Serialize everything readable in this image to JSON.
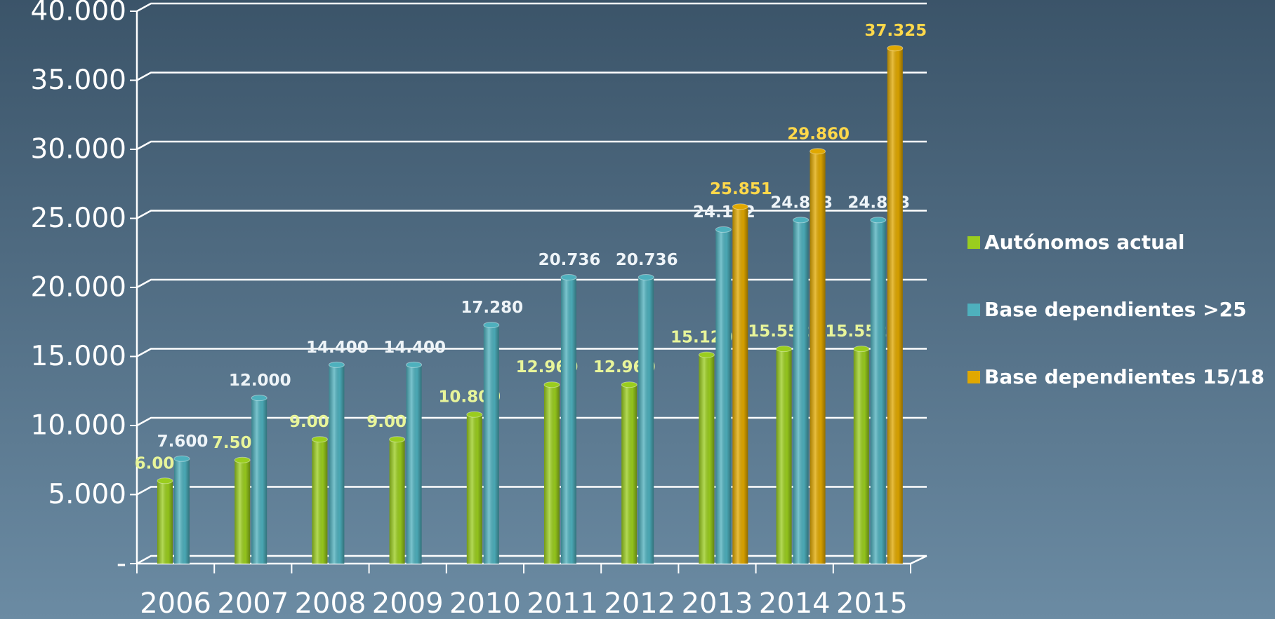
{
  "chart_data": {
    "type": "bar",
    "categories": [
      "2006",
      "2007",
      "2008",
      "2009",
      "2010",
      "2011",
      "2012",
      "2013",
      "2014",
      "2015"
    ],
    "series": [
      {
        "name": "Autónomos actual",
        "color": "#9acd1e",
        "values": [
          6000,
          7500,
          9000,
          9000,
          10800,
          12960,
          12960,
          15120,
          15552,
          15552
        ],
        "value_labels": [
          "6.000",
          "7.500",
          "9.000",
          "9.000",
          "10.800",
          "12.960",
          "12.960",
          "15.120",
          "15.552",
          "15.552"
        ]
      },
      {
        "name": "Base dependientes >25",
        "color": "#4eb0bd",
        "values": [
          7600,
          12000,
          14400,
          14400,
          17280,
          20736,
          20736,
          24192,
          24883,
          24883
        ],
        "value_labels": [
          "7.600",
          "12.000",
          "14.400",
          "14.400",
          "17.280",
          "20.736",
          "20.736",
          "24.192",
          "24.883",
          "24.883"
        ]
      },
      {
        "name": "Base dependientes 15/18",
        "color": "#e0a800",
        "values": [
          null,
          null,
          null,
          null,
          null,
          null,
          null,
          25851,
          29860,
          37325
        ],
        "value_labels": [
          null,
          null,
          null,
          null,
          null,
          null,
          null,
          "25.851",
          "29.860",
          "37.325"
        ]
      }
    ],
    "ylim": [
      0,
      40000
    ],
    "yticks": [
      {
        "value": 0,
        "label": "-"
      },
      {
        "value": 5000,
        "label": "5.000"
      },
      {
        "value": 10000,
        "label": "10.000"
      },
      {
        "value": 15000,
        "label": "15.000"
      },
      {
        "value": 20000,
        "label": "20.000"
      },
      {
        "value": 25000,
        "label": "25.000"
      },
      {
        "value": 30000,
        "label": "30.000"
      },
      {
        "value": 35000,
        "label": "35.000"
      },
      {
        "value": 40000,
        "label": "40.000"
      }
    ],
    "grid": true,
    "legend": "right"
  }
}
